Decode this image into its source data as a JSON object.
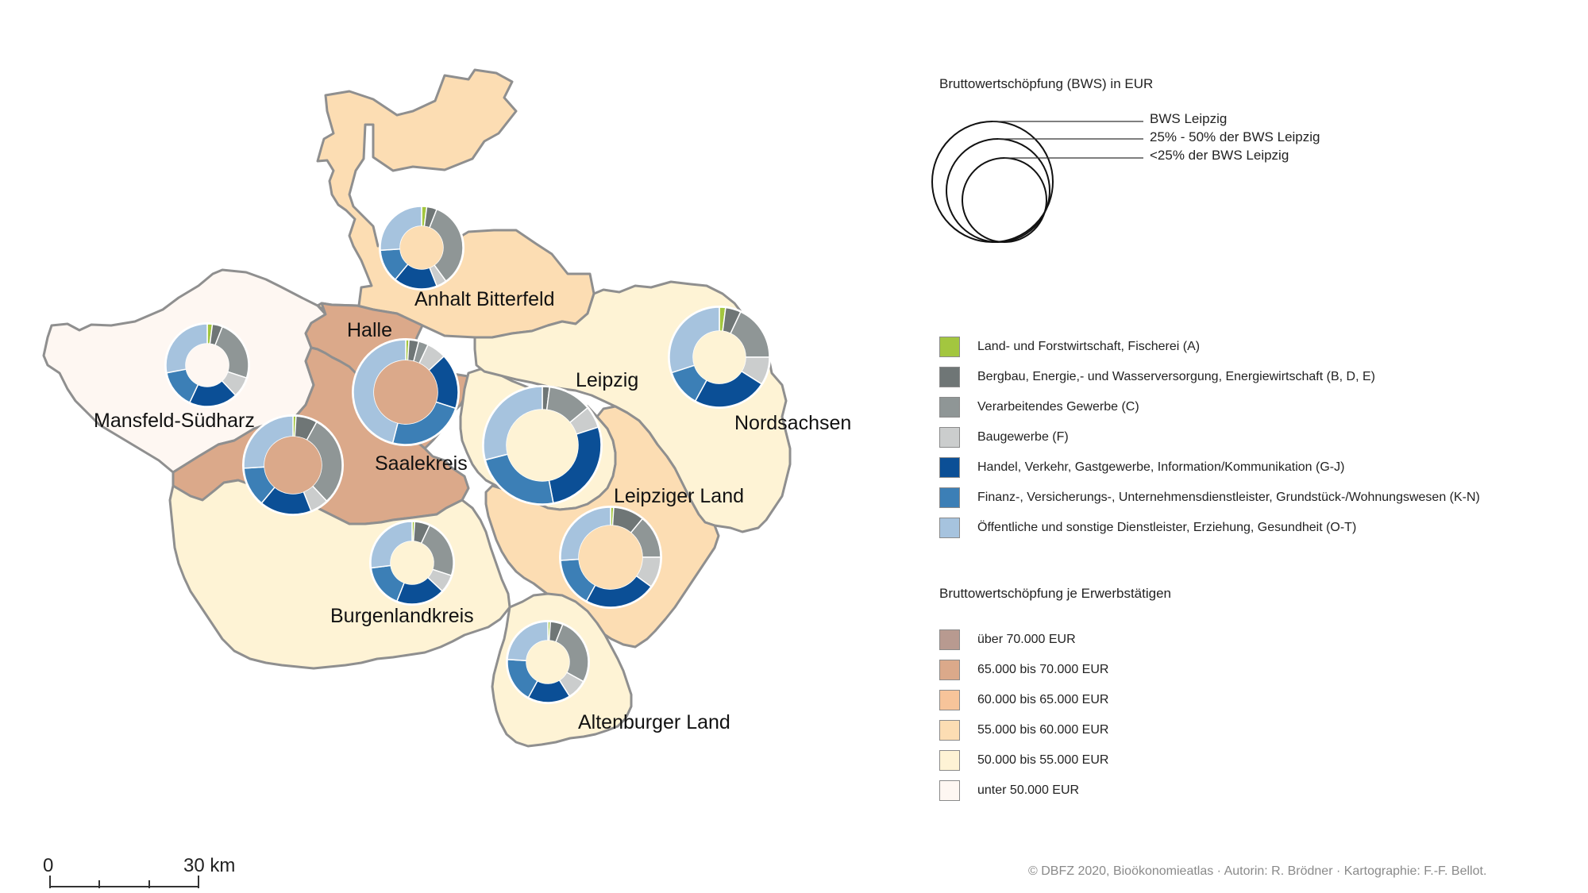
{
  "sectors": [
    {
      "name": "Land- und Forstwirtschaft, Fischerei (A)",
      "color": "#a3c63f"
    },
    {
      "name": "Bergbau, Energie,- und Wasserversorgung, Energiewirtschaft (B, D, E)",
      "color": "#6f7676"
    },
    {
      "name": "Verarbeitendes Gewerbe (C)",
      "color": "#8f9696"
    },
    {
      "name": "Baugewerbe (F)",
      "color": "#cbcdcd"
    },
    {
      "name": "Handel, Verkehr, Gastgewerbe, Information/Kommunikation (G-J)",
      "color": "#0b4f96"
    },
    {
      "name": "Finanz-, Versicherungs-, Unternehmensdienstleister, Grundstück-/Wohnungswesen (K-N)",
      "color": "#3c7fb6"
    },
    {
      "name": "Öffentliche und sonstige Dienstleister, Erziehung, Gesundheit (O-T)",
      "color": "#a6c3de"
    }
  ],
  "legend": {
    "bws_title": "Bruttowertschöpfung (BWS) in EUR",
    "size_classes": [
      "BWS Leipzig",
      "25% - 50% der BWS Leipzig",
      "<25% der BWS Leipzig"
    ],
    "per_worker_title": "Bruttowertschöpfung je Erwerbstätigen",
    "per_worker_classes": [
      {
        "label": "über 70.000 EUR",
        "color": "#b89a90"
      },
      {
        "label": "65.000 bis 70.000 EUR",
        "color": "#dba98a"
      },
      {
        "label": "60.000 bis 65.000 EUR",
        "color": "#f7c49a"
      },
      {
        "label": "55.000 bis 60.000 EUR",
        "color": "#fcddb3"
      },
      {
        "label": "50.000 bis 55.000 EUR",
        "color": "#fef3d5"
      },
      {
        "label": "unter 50.000 EUR",
        "color": "#fef7f2"
      }
    ]
  },
  "districts": [
    {
      "name": "Anhalt Bitterfeld",
      "class": "55.000 bis 60.000 EUR",
      "shares": [
        2,
        4,
        34,
        4,
        17,
        13,
        26
      ]
    },
    {
      "name": "Mansfeld-Südharz",
      "class": "unter 50.000 EUR",
      "shares": [
        2,
        4,
        24,
        8,
        19,
        15,
        28
      ]
    },
    {
      "name": "Halle",
      "class": "65.000 bis 70.000 EUR",
      "shares": [
        1,
        3,
        3,
        6,
        17,
        24,
        46
      ]
    },
    {
      "name": "Saalekreis",
      "class": "65.000 bis 70.000 EUR",
      "shares": [
        1,
        7,
        30,
        6,
        17,
        13,
        26
      ]
    },
    {
      "name": "Leipzig",
      "class": "50.000 bis 55.000 EUR",
      "shares": [
        0,
        2,
        12,
        6,
        27,
        24,
        29
      ]
    },
    {
      "name": "Nordsachsen",
      "class": "50.000 bis 55.000 EUR",
      "shares": [
        2,
        5,
        18,
        9,
        24,
        12,
        30
      ]
    },
    {
      "name": "Leipziger Land",
      "class": "55.000 bis 60.000 EUR",
      "shares": [
        1,
        10,
        14,
        10,
        23,
        16,
        26
      ]
    },
    {
      "name": "Burgenlandkreis",
      "class": "50.000 bis 55.000 EUR",
      "shares": [
        1,
        6,
        23,
        7,
        19,
        17,
        27
      ]
    },
    {
      "name": "Altenburger Land",
      "class": "50.000 bis 55.000 EUR",
      "shares": [
        1,
        5,
        27,
        8,
        17,
        18,
        24
      ]
    }
  ],
  "scale_bar": {
    "start": "0",
    "end": "30 km"
  },
  "copyright": "© DBFZ 2020, Bioökonomieatlas · Autorin: R. Brödner · Kartographie: F.-F. Bellot."
}
